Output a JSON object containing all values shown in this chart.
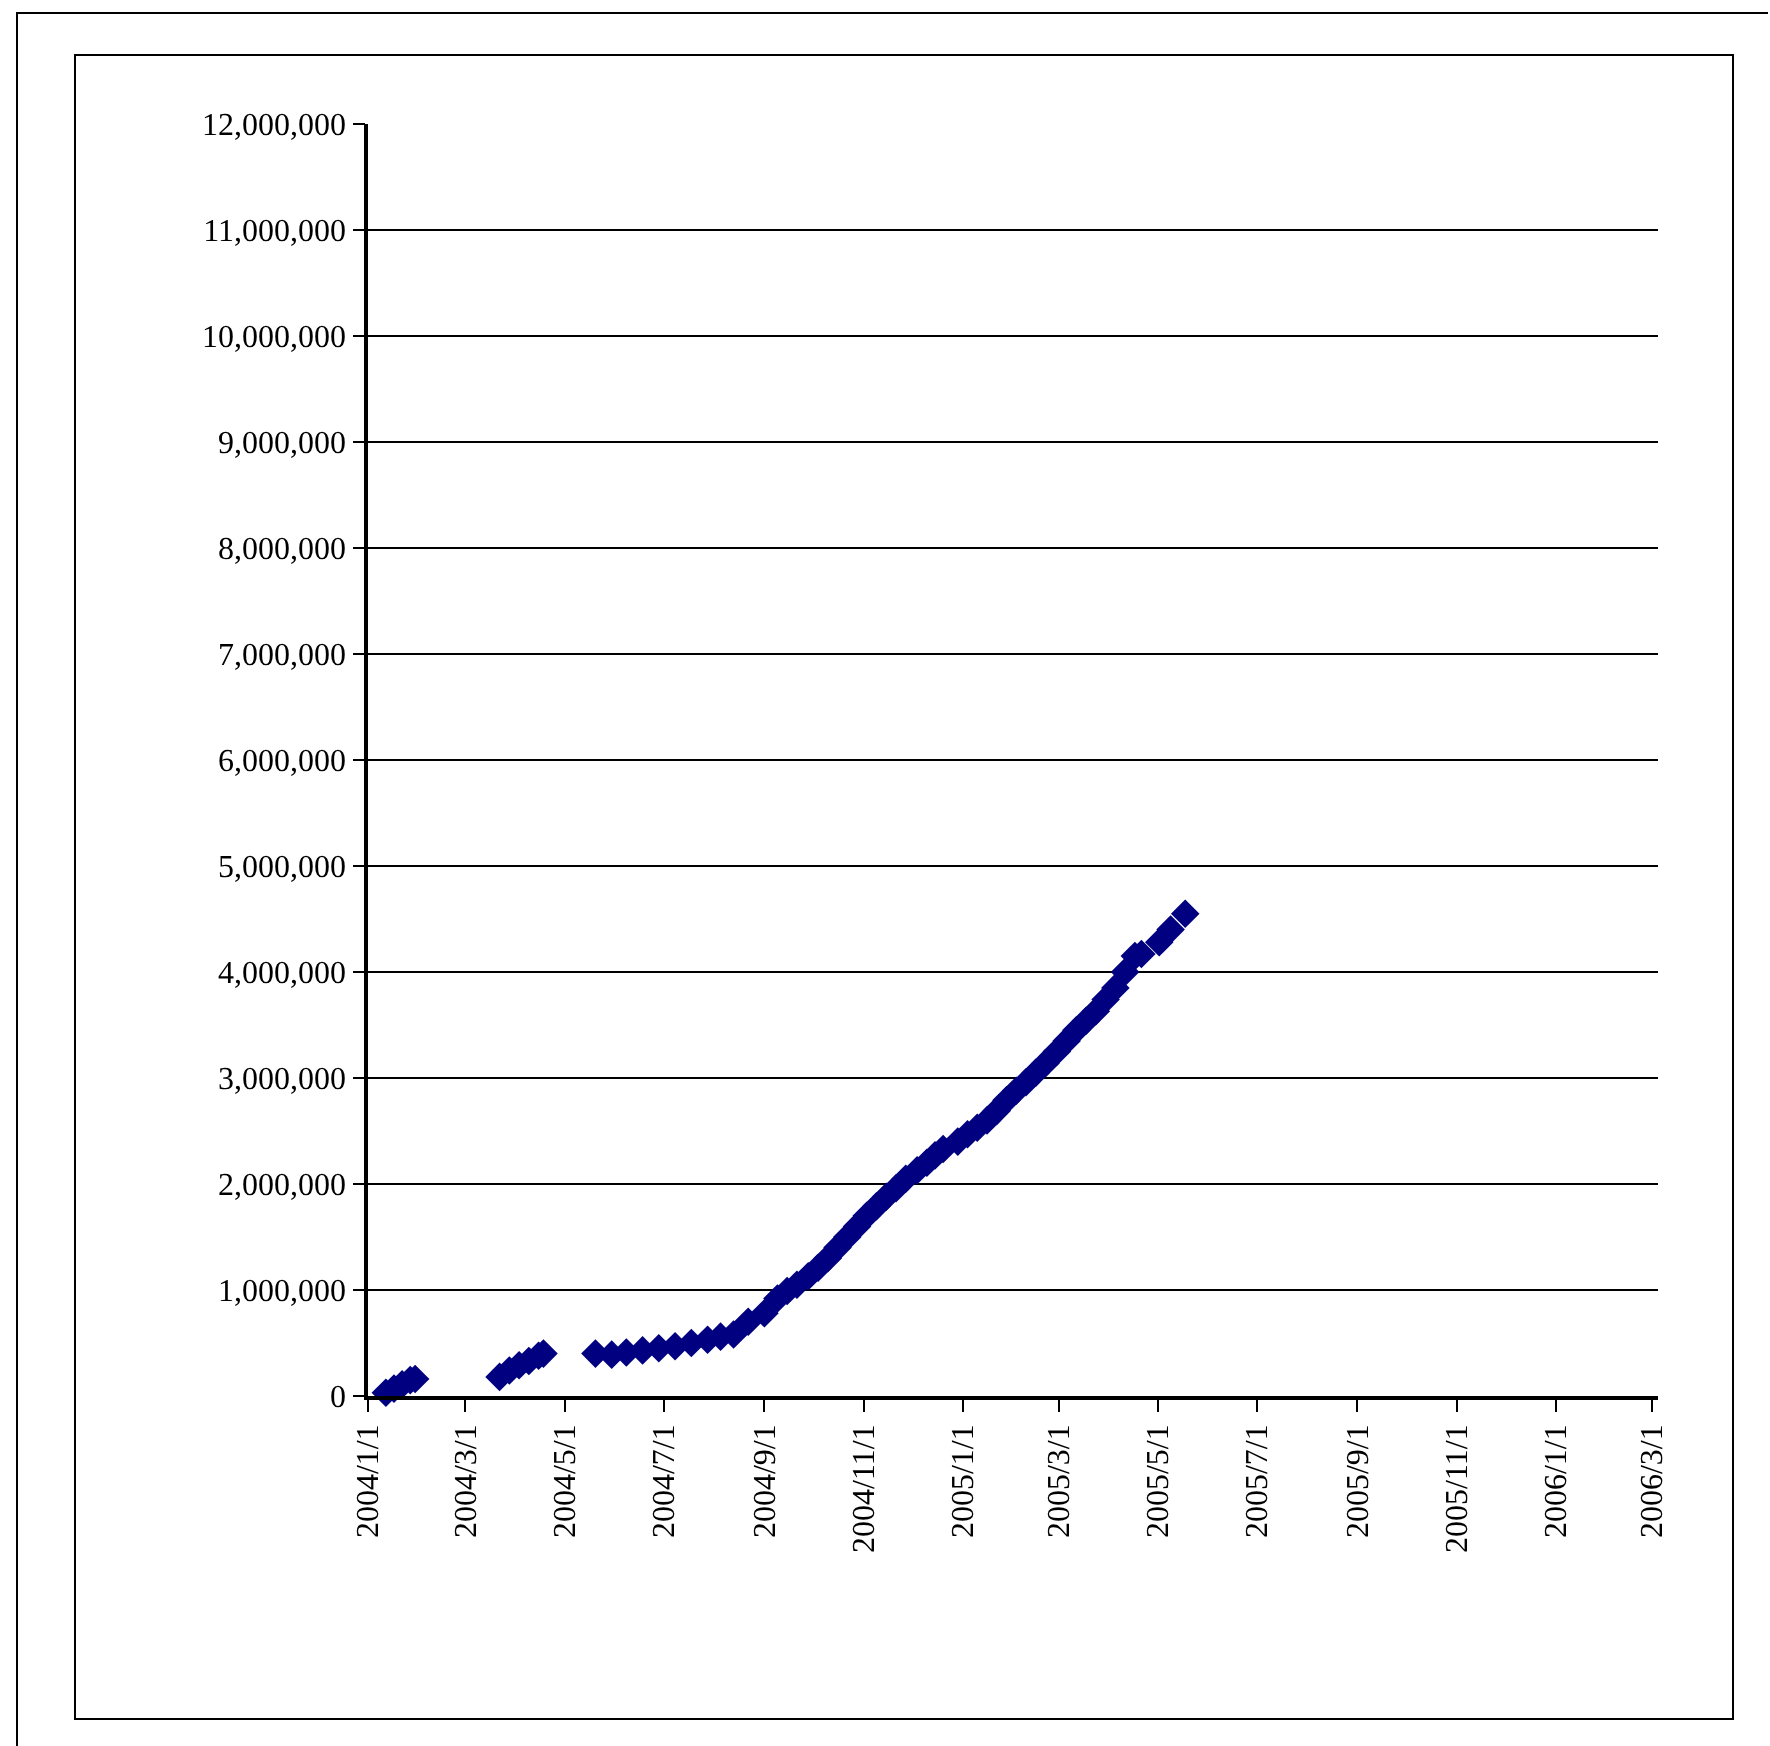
{
  "chart_data": {
    "type": "scatter",
    "marker": "diamond",
    "grid": "y",
    "x": [
      "2004-01-12",
      "2004-01-17",
      "2004-01-22",
      "2004-01-27",
      "2004-01-30",
      "2004-03-22",
      "2004-03-28",
      "2004-04-03",
      "2004-04-09",
      "2004-04-15",
      "2004-04-18",
      "2004-05-20",
      "2004-05-30",
      "2004-06-08",
      "2004-06-18",
      "2004-06-28",
      "2004-07-08",
      "2004-07-18",
      "2004-07-28",
      "2004-08-05",
      "2004-08-13",
      "2004-08-22",
      "2004-09-01",
      "2004-09-09",
      "2004-09-15",
      "2004-09-21",
      "2004-09-28",
      "2004-10-04",
      "2004-10-10",
      "2004-10-16",
      "2004-10-22",
      "2004-10-28",
      "2004-11-03",
      "2004-11-09",
      "2004-11-15",
      "2004-11-21",
      "2004-11-27",
      "2004-12-04",
      "2004-12-10",
      "2004-12-15",
      "2004-12-20",
      "2004-12-29",
      "2005-01-04",
      "2005-01-10",
      "2005-01-16",
      "2005-01-22",
      "2005-01-28",
      "2005-02-03",
      "2005-02-09",
      "2005-02-15",
      "2005-02-21",
      "2005-02-28",
      "2005-03-06",
      "2005-03-12",
      "2005-03-18",
      "2005-03-24",
      "2005-03-30",
      "2005-04-05",
      "2005-04-11",
      "2005-04-17",
      "2005-04-21",
      "2005-05-02",
      "2005-05-09",
      "2005-05-18"
    ],
    "series": [
      {
        "color": "#000080",
        "values": [
          30000,
          70000,
          110000,
          150000,
          160000,
          180000,
          240000,
          290000,
          330000,
          380000,
          400000,
          400000,
          390000,
          410000,
          430000,
          450000,
          470000,
          500000,
          530000,
          560000,
          580000,
          700000,
          780000,
          920000,
          990000,
          1050000,
          1130000,
          1210000,
          1300000,
          1400000,
          1500000,
          1600000,
          1700000,
          1790000,
          1880000,
          1960000,
          2050000,
          2130000,
          2200000,
          2270000,
          2330000,
          2400000,
          2470000,
          2530000,
          2600000,
          2690000,
          2790000,
          2880000,
          2960000,
          3050000,
          3140000,
          3250000,
          3350000,
          3450000,
          3540000,
          3630000,
          3740000,
          3850000,
          4000000,
          4150000,
          4170000,
          4280000,
          4400000,
          4550000
        ]
      }
    ],
    "xlim": [
      "2004-01-01",
      "2006-03-05"
    ],
    "xticks": [
      {
        "value": "2004-01-01",
        "label": "2004/1/1"
      },
      {
        "value": "2004-03-01",
        "label": "2004/3/1"
      },
      {
        "value": "2004-05-01",
        "label": "2004/5/1"
      },
      {
        "value": "2004-07-01",
        "label": "2004/7/1"
      },
      {
        "value": "2004-09-01",
        "label": "2004/9/1"
      },
      {
        "value": "2004-11-01",
        "label": "2004/11/1"
      },
      {
        "value": "2005-01-01",
        "label": "2005/1/1"
      },
      {
        "value": "2005-03-01",
        "label": "2005/3/1"
      },
      {
        "value": "2005-05-01",
        "label": "2005/5/1"
      },
      {
        "value": "2005-07-01",
        "label": "2005/7/1"
      },
      {
        "value": "2005-09-01",
        "label": "2005/9/1"
      },
      {
        "value": "2005-11-01",
        "label": "2005/11/1"
      },
      {
        "value": "2006-01-01",
        "label": "2006/1/1"
      },
      {
        "value": "2006-03-01",
        "label": "2006/3/1"
      }
    ],
    "ylim": [
      0,
      12000000
    ],
    "yticks": [
      {
        "value": 0,
        "label": "0"
      },
      {
        "value": 1000000,
        "label": "1,000,000"
      },
      {
        "value": 2000000,
        "label": "2,000,000"
      },
      {
        "value": 3000000,
        "label": "3,000,000"
      },
      {
        "value": 4000000,
        "label": "4,000,000"
      },
      {
        "value": 5000000,
        "label": "5,000,000"
      },
      {
        "value": 6000000,
        "label": "6,000,000"
      },
      {
        "value": 7000000,
        "label": "7,000,000"
      },
      {
        "value": 8000000,
        "label": "8,000,000"
      },
      {
        "value": 9000000,
        "label": "9,000,000"
      },
      {
        "value": 10000000,
        "label": "10,000,000"
      },
      {
        "value": 11000000,
        "label": "11,000,000"
      },
      {
        "value": 12000000,
        "label": "12,000,000"
      }
    ]
  }
}
